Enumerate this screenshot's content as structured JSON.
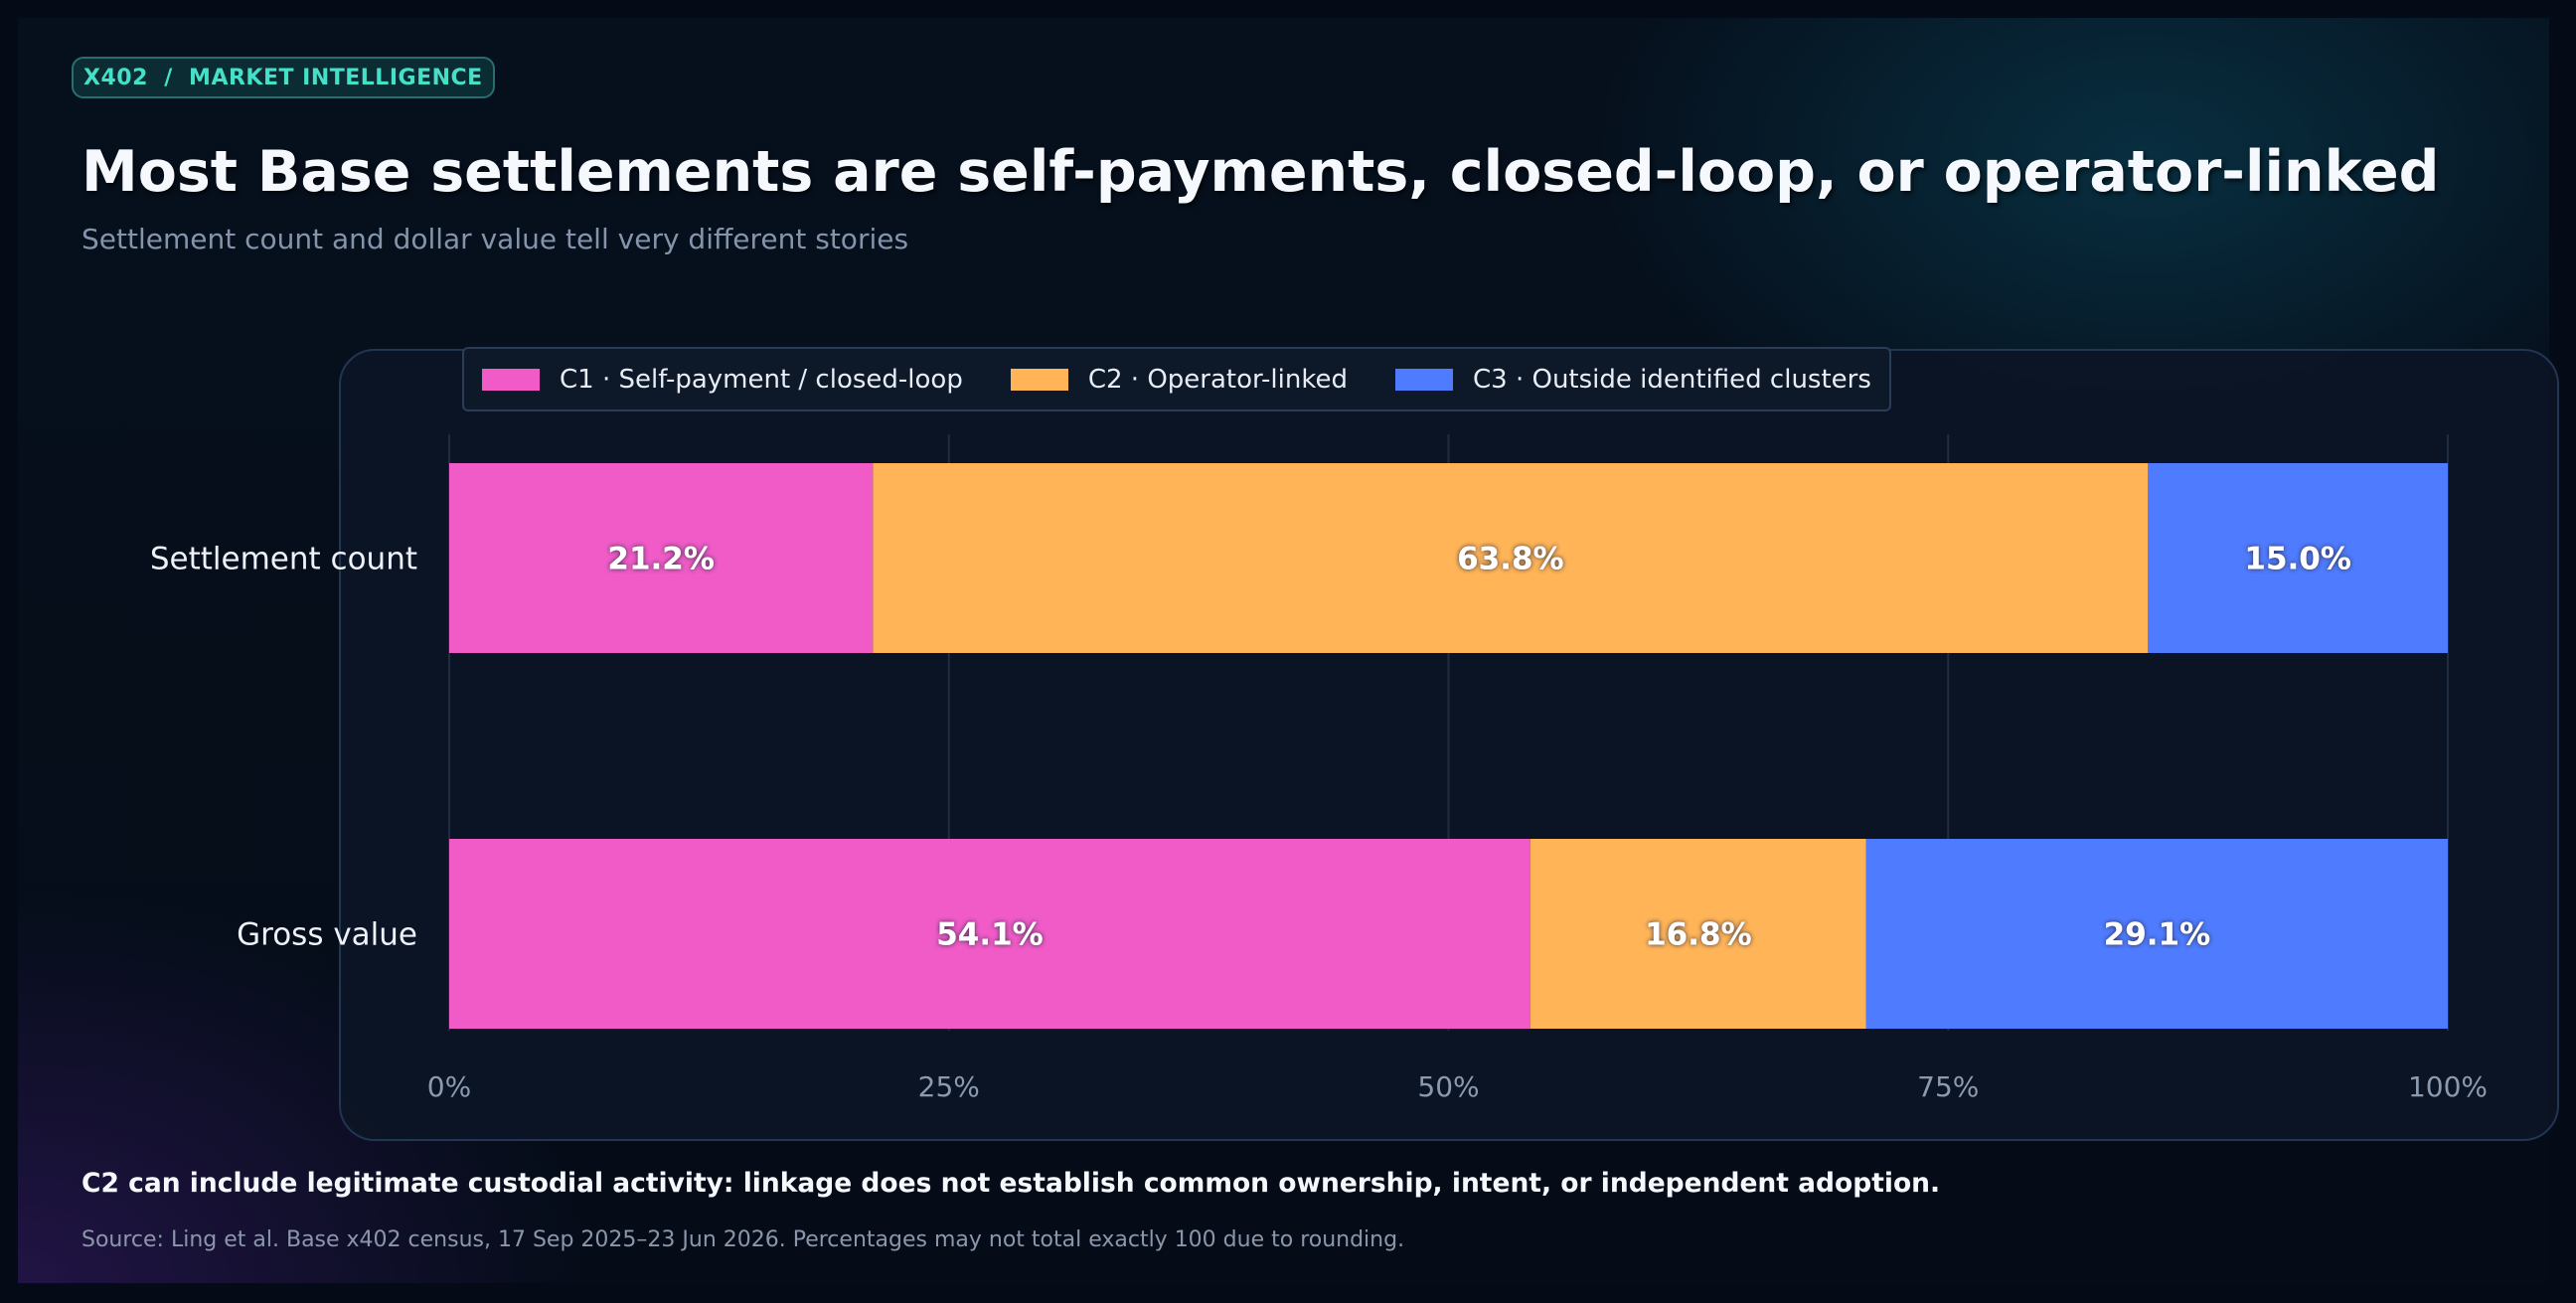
{
  "badge": "X402  /  MARKET INTELLIGENCE",
  "title": "Most Base settlements are self-payments, closed-loop, or operator-linked",
  "subtitle": "Settlement count and dollar value tell very different stories",
  "note": "C2 can include legitimate custodial activity: linkage does not establish common ownership, intent, or independent adoption.",
  "source": "Source: Ling et al. Base x402 census, 17 Sep 2025–23 Jun 2026. Percentages may not total exactly 100 due to rounding.",
  "colors": {
    "c1": "#f05bc7",
    "c2": "#ffb457",
    "c3": "#4f7cff",
    "grid": "#1f2d42",
    "tick": "#8c9ab0",
    "category": "#eef2f8"
  },
  "chart_data": {
    "type": "bar",
    "orientation": "horizontal",
    "stacked": true,
    "categories": [
      "Settlement count",
      "Gross value"
    ],
    "series": [
      {
        "name": "C1 · Self-payment / closed-loop",
        "values": [
          21.2,
          54.1
        ],
        "labels": [
          "21.2%",
          "54.1%"
        ]
      },
      {
        "name": "C2 · Operator-linked",
        "values": [
          63.8,
          16.8
        ],
        "labels": [
          "63.8%",
          "16.8%"
        ]
      },
      {
        "name": "C3 · Outside identified clusters",
        "values": [
          15.0,
          29.1
        ],
        "labels": [
          "15.0%",
          "29.1%"
        ]
      }
    ],
    "xlim": [
      0,
      100
    ],
    "xticks": [
      0,
      25,
      50,
      75,
      100
    ],
    "xtick_labels": [
      "0%",
      "25%",
      "50%",
      "75%",
      "100%"
    ],
    "grid": true,
    "legend_position": "top-left"
  }
}
